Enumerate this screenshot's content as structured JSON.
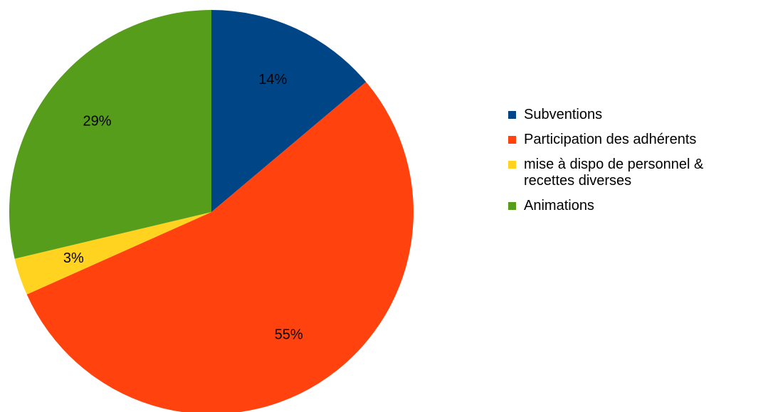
{
  "chart_data": {
    "type": "pie",
    "categories": [
      "Subventions",
      "Participation des adhérents",
      "mise à dispo de personnel & recettes diverses",
      "Animations"
    ],
    "values": [
      14,
      55,
      3,
      29
    ],
    "data_labels": [
      "14%",
      "55%",
      "3%",
      "29%"
    ],
    "colors": [
      "#004586",
      "#FF420E",
      "#FFD320",
      "#579D1C"
    ],
    "legend_position": "right",
    "title": ""
  }
}
